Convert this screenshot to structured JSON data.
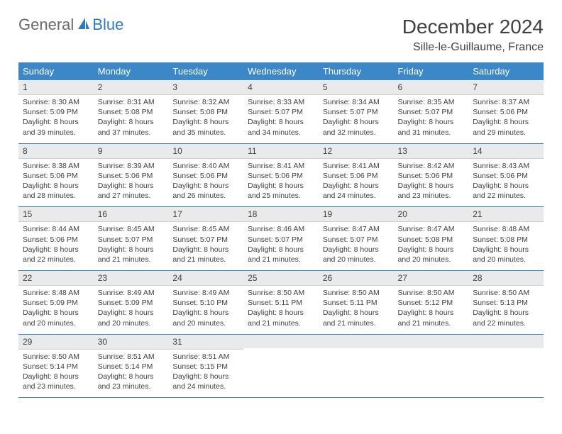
{
  "brand": {
    "part1": "General",
    "part2": "Blue"
  },
  "title": "December 2024",
  "location": "Sille-le-Guillaume, France",
  "colors": {
    "header_bg": "#3c87c7",
    "header_text": "#ffffff",
    "daynum_bg": "#e9eaec",
    "text": "#404040",
    "brand_gray": "#6a6a6a",
    "brand_blue": "#2f79c2",
    "rule": "#3c87c7"
  },
  "weekdays": [
    "Sunday",
    "Monday",
    "Tuesday",
    "Wednesday",
    "Thursday",
    "Friday",
    "Saturday"
  ],
  "weeks": [
    [
      {
        "n": "1",
        "sr": "8:30 AM",
        "ss": "5:09 PM",
        "dl": "8 hours and 39 minutes."
      },
      {
        "n": "2",
        "sr": "8:31 AM",
        "ss": "5:08 PM",
        "dl": "8 hours and 37 minutes."
      },
      {
        "n": "3",
        "sr": "8:32 AM",
        "ss": "5:08 PM",
        "dl": "8 hours and 35 minutes."
      },
      {
        "n": "4",
        "sr": "8:33 AM",
        "ss": "5:07 PM",
        "dl": "8 hours and 34 minutes."
      },
      {
        "n": "5",
        "sr": "8:34 AM",
        "ss": "5:07 PM",
        "dl": "8 hours and 32 minutes."
      },
      {
        "n": "6",
        "sr": "8:35 AM",
        "ss": "5:07 PM",
        "dl": "8 hours and 31 minutes."
      },
      {
        "n": "7",
        "sr": "8:37 AM",
        "ss": "5:06 PM",
        "dl": "8 hours and 29 minutes."
      }
    ],
    [
      {
        "n": "8",
        "sr": "8:38 AM",
        "ss": "5:06 PM",
        "dl": "8 hours and 28 minutes."
      },
      {
        "n": "9",
        "sr": "8:39 AM",
        "ss": "5:06 PM",
        "dl": "8 hours and 27 minutes."
      },
      {
        "n": "10",
        "sr": "8:40 AM",
        "ss": "5:06 PM",
        "dl": "8 hours and 26 minutes."
      },
      {
        "n": "11",
        "sr": "8:41 AM",
        "ss": "5:06 PM",
        "dl": "8 hours and 25 minutes."
      },
      {
        "n": "12",
        "sr": "8:41 AM",
        "ss": "5:06 PM",
        "dl": "8 hours and 24 minutes."
      },
      {
        "n": "13",
        "sr": "8:42 AM",
        "ss": "5:06 PM",
        "dl": "8 hours and 23 minutes."
      },
      {
        "n": "14",
        "sr": "8:43 AM",
        "ss": "5:06 PM",
        "dl": "8 hours and 22 minutes."
      }
    ],
    [
      {
        "n": "15",
        "sr": "8:44 AM",
        "ss": "5:06 PM",
        "dl": "8 hours and 22 minutes."
      },
      {
        "n": "16",
        "sr": "8:45 AM",
        "ss": "5:07 PM",
        "dl": "8 hours and 21 minutes."
      },
      {
        "n": "17",
        "sr": "8:45 AM",
        "ss": "5:07 PM",
        "dl": "8 hours and 21 minutes."
      },
      {
        "n": "18",
        "sr": "8:46 AM",
        "ss": "5:07 PM",
        "dl": "8 hours and 21 minutes."
      },
      {
        "n": "19",
        "sr": "8:47 AM",
        "ss": "5:07 PM",
        "dl": "8 hours and 20 minutes."
      },
      {
        "n": "20",
        "sr": "8:47 AM",
        "ss": "5:08 PM",
        "dl": "8 hours and 20 minutes."
      },
      {
        "n": "21",
        "sr": "8:48 AM",
        "ss": "5:08 PM",
        "dl": "8 hours and 20 minutes."
      }
    ],
    [
      {
        "n": "22",
        "sr": "8:48 AM",
        "ss": "5:09 PM",
        "dl": "8 hours and 20 minutes."
      },
      {
        "n": "23",
        "sr": "8:49 AM",
        "ss": "5:09 PM",
        "dl": "8 hours and 20 minutes."
      },
      {
        "n": "24",
        "sr": "8:49 AM",
        "ss": "5:10 PM",
        "dl": "8 hours and 20 minutes."
      },
      {
        "n": "25",
        "sr": "8:50 AM",
        "ss": "5:11 PM",
        "dl": "8 hours and 21 minutes."
      },
      {
        "n": "26",
        "sr": "8:50 AM",
        "ss": "5:11 PM",
        "dl": "8 hours and 21 minutes."
      },
      {
        "n": "27",
        "sr": "8:50 AM",
        "ss": "5:12 PM",
        "dl": "8 hours and 21 minutes."
      },
      {
        "n": "28",
        "sr": "8:50 AM",
        "ss": "5:13 PM",
        "dl": "8 hours and 22 minutes."
      }
    ],
    [
      {
        "n": "29",
        "sr": "8:50 AM",
        "ss": "5:14 PM",
        "dl": "8 hours and 23 minutes."
      },
      {
        "n": "30",
        "sr": "8:51 AM",
        "ss": "5:14 PM",
        "dl": "8 hours and 23 minutes."
      },
      {
        "n": "31",
        "sr": "8:51 AM",
        "ss": "5:15 PM",
        "dl": "8 hours and 24 minutes."
      },
      null,
      null,
      null,
      null
    ]
  ],
  "labels": {
    "sunrise": "Sunrise:",
    "sunset": "Sunset:",
    "daylight": "Daylight:"
  }
}
